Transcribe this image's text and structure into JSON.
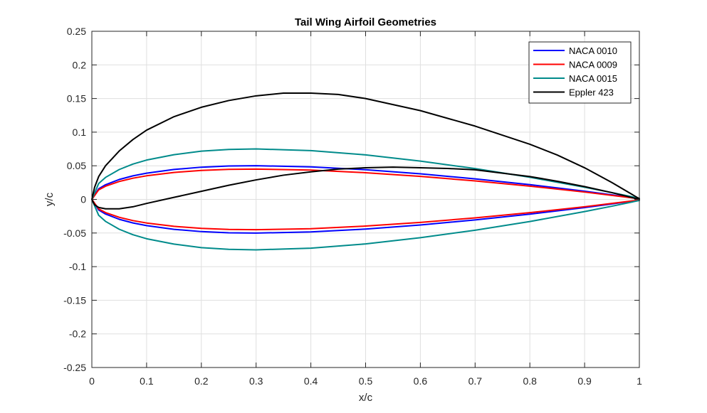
{
  "chart_data": {
    "type": "line",
    "title": "Tail Wing Airfoil Geometries",
    "xlabel": "x/c",
    "ylabel": "y/c",
    "xlim": [
      0,
      1
    ],
    "ylim": [
      -0.25,
      0.25
    ],
    "xticks": [
      "0",
      "0.1",
      "0.2",
      "0.3",
      "0.4",
      "0.5",
      "0.6",
      "0.7",
      "0.8",
      "0.9",
      "1"
    ],
    "yticks": [
      "0.25",
      "0.2",
      "0.15",
      "0.1",
      "0.05",
      "0",
      "-0.05",
      "-0.1",
      "-0.15",
      "-0.2",
      "-0.25"
    ],
    "grid": true,
    "legend_position": "top-right",
    "series": [
      {
        "name": "NACA 0010",
        "color": "#0000ff",
        "x": [
          1.0,
          0.95,
          0.9,
          0.8,
          0.7,
          0.6,
          0.5,
          0.4,
          0.3,
          0.25,
          0.2,
          0.15,
          0.1,
          0.075,
          0.05,
          0.025,
          0.0125,
          0.0,
          0.0125,
          0.025,
          0.05,
          0.075,
          0.1,
          0.15,
          0.2,
          0.25,
          0.3,
          0.4,
          0.5,
          0.6,
          0.7,
          0.8,
          0.9,
          0.95,
          1.0
        ],
        "y": [
          0.001,
          0.0067,
          0.0121,
          0.0219,
          0.0305,
          0.038,
          0.0441,
          0.0484,
          0.0501,
          0.0497,
          0.0479,
          0.0445,
          0.039,
          0.035,
          0.0296,
          0.0218,
          0.0158,
          0.0,
          -0.0158,
          -0.0218,
          -0.0296,
          -0.035,
          -0.039,
          -0.0445,
          -0.0479,
          -0.0497,
          -0.0501,
          -0.0484,
          -0.0441,
          -0.038,
          -0.0305,
          -0.0219,
          -0.0121,
          -0.0067,
          -0.001
        ]
      },
      {
        "name": "NACA 0009",
        "color": "#ff0000",
        "x": [
          1.0,
          0.95,
          0.9,
          0.8,
          0.7,
          0.6,
          0.5,
          0.4,
          0.3,
          0.25,
          0.2,
          0.15,
          0.1,
          0.075,
          0.05,
          0.025,
          0.0125,
          0.0,
          0.0125,
          0.025,
          0.05,
          0.075,
          0.1,
          0.15,
          0.2,
          0.25,
          0.3,
          0.4,
          0.5,
          0.6,
          0.7,
          0.8,
          0.9,
          0.95,
          1.0
        ],
        "y": [
          0.001,
          0.006,
          0.0109,
          0.0197,
          0.0275,
          0.0342,
          0.0397,
          0.0436,
          0.0451,
          0.0447,
          0.0431,
          0.0401,
          0.0351,
          0.0315,
          0.0266,
          0.0196,
          0.0142,
          0.0,
          -0.0142,
          -0.0196,
          -0.0266,
          -0.0315,
          -0.0351,
          -0.0401,
          -0.0431,
          -0.0447,
          -0.0451,
          -0.0436,
          -0.0397,
          -0.0342,
          -0.0275,
          -0.0197,
          -0.0109,
          -0.006,
          -0.001
        ]
      },
      {
        "name": "NACA 0015",
        "color": "#008b8b",
        "x": [
          1.0,
          0.95,
          0.9,
          0.8,
          0.7,
          0.6,
          0.5,
          0.4,
          0.3,
          0.25,
          0.2,
          0.15,
          0.1,
          0.075,
          0.05,
          0.025,
          0.0125,
          0.0,
          0.0125,
          0.025,
          0.05,
          0.075,
          0.1,
          0.15,
          0.2,
          0.25,
          0.3,
          0.4,
          0.5,
          0.6,
          0.7,
          0.8,
          0.9,
          0.95,
          1.0
        ],
        "y": [
          0.0016,
          0.0101,
          0.0181,
          0.0329,
          0.0458,
          0.057,
          0.0662,
          0.0726,
          0.075,
          0.0743,
          0.0717,
          0.0665,
          0.0585,
          0.0525,
          0.0444,
          0.0327,
          0.0237,
          0.0,
          -0.0237,
          -0.0327,
          -0.0444,
          -0.0525,
          -0.0585,
          -0.0665,
          -0.0717,
          -0.0743,
          -0.075,
          -0.0726,
          -0.0662,
          -0.057,
          -0.0458,
          -0.0329,
          -0.0181,
          -0.0101,
          -0.0016
        ]
      },
      {
        "name": "Eppler 423",
        "color": "#000000",
        "x": [
          1.0,
          0.95,
          0.9,
          0.85,
          0.8,
          0.7,
          0.6,
          0.5,
          0.45,
          0.4,
          0.35,
          0.3,
          0.25,
          0.2,
          0.15,
          0.1,
          0.075,
          0.05,
          0.025,
          0.0125,
          0.005,
          0.0,
          0.005,
          0.0125,
          0.025,
          0.05,
          0.075,
          0.1,
          0.15,
          0.2,
          0.25,
          0.3,
          0.35,
          0.4,
          0.45,
          0.5,
          0.55,
          0.6,
          0.65,
          0.7,
          0.8,
          0.85,
          0.9,
          0.95,
          1.0
        ],
        "y": [
          0.001,
          0.025,
          0.047,
          0.066,
          0.082,
          0.109,
          0.132,
          0.15,
          0.156,
          0.158,
          0.158,
          0.154,
          0.147,
          0.137,
          0.123,
          0.103,
          0.089,
          0.072,
          0.05,
          0.034,
          0.018,
          0.0,
          -0.008,
          -0.012,
          -0.014,
          -0.014,
          -0.011,
          -0.006,
          0.003,
          0.012,
          0.021,
          0.029,
          0.036,
          0.041,
          0.045,
          0.047,
          0.048,
          0.047,
          0.046,
          0.044,
          0.034,
          0.027,
          0.019,
          0.01,
          0.0
        ]
      }
    ]
  }
}
